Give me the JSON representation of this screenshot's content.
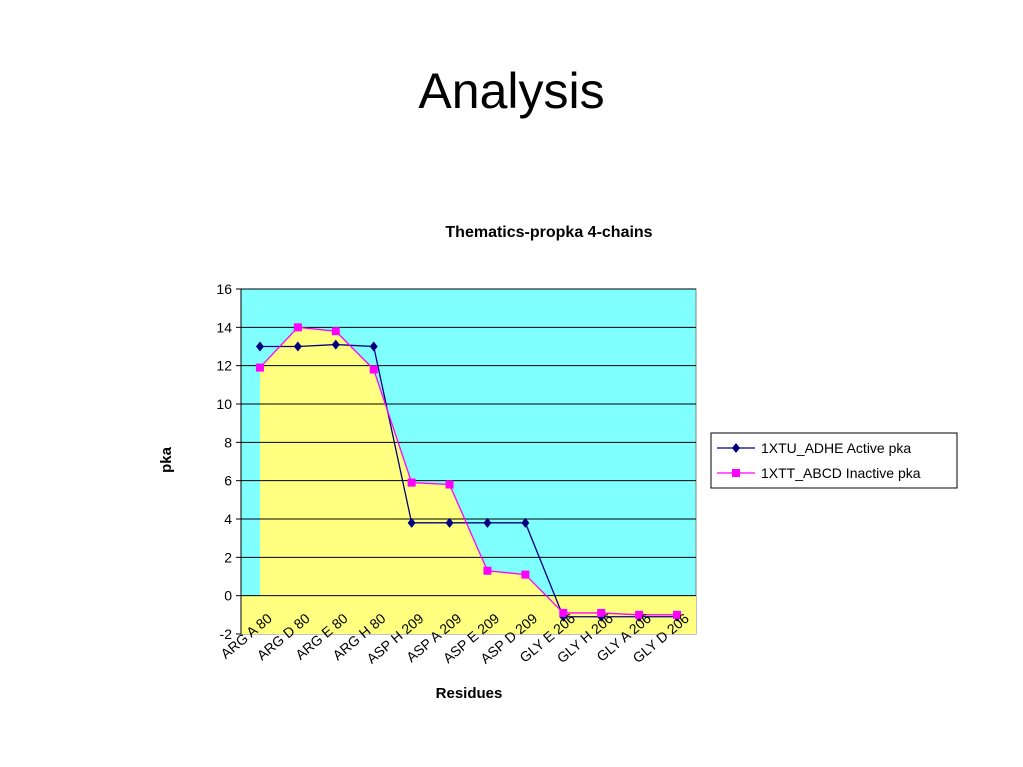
{
  "slide": {
    "title": "Analysis"
  },
  "chart_data": {
    "type": "line",
    "title": "Thematics-propka 4-chains",
    "xlabel": "Residues",
    "ylabel": "pka",
    "ylim": [
      -2,
      16
    ],
    "yticks": [
      -2,
      0,
      2,
      4,
      6,
      8,
      10,
      12,
      14,
      16
    ],
    "grid": true,
    "legend_position": "right",
    "colors": {
      "plot_background": "#80FFFF",
      "area_fill": "#FFFF80",
      "active": "#000080",
      "inactive": "#FF00FF"
    },
    "categories": [
      "ARG A 80",
      "ARG D 80",
      "ARG E 80",
      "ARG H 80",
      "ASP H 209",
      "ASP A 209",
      "ASP E 209",
      "ASP D 209",
      "GLY E 206",
      "GLY H 206",
      "GLY A 206",
      "GLY D 206"
    ],
    "series": [
      {
        "name": "1XTU_ADHE Active pka",
        "marker": "diamond",
        "values": [
          13.0,
          13.0,
          13.1,
          13.0,
          3.8,
          3.8,
          3.8,
          3.8,
          -1.1,
          -1.1,
          -1.1,
          -1.1
        ]
      },
      {
        "name": "1XTT_ABCD Inactive pka",
        "marker": "square",
        "values": [
          11.9,
          14.0,
          13.8,
          11.8,
          5.9,
          5.8,
          1.3,
          1.1,
          -0.9,
          -0.9,
          -1.0,
          -1.0
        ]
      }
    ]
  }
}
